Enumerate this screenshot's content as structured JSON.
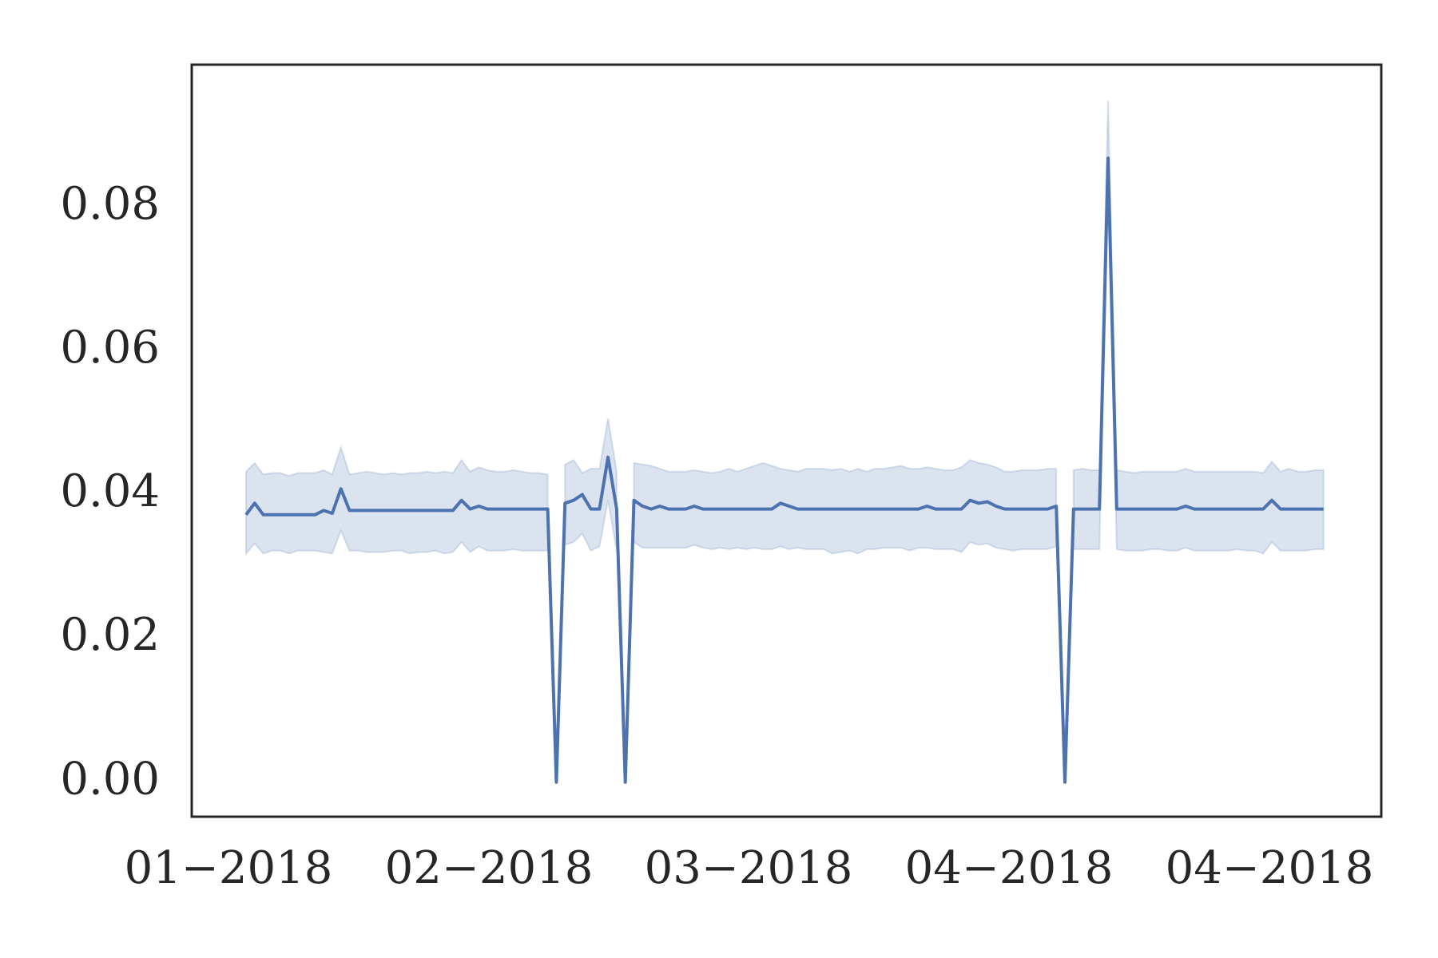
{
  "chart_data": {
    "type": "line",
    "title": "",
    "xlabel": "",
    "ylabel": "",
    "x_tick_labels": [
      "01−2018",
      "02−2018",
      "03−2018",
      "04−2018",
      "04−2018"
    ],
    "y_tick_labels": [
      "0.00",
      "0.02",
      "0.04",
      "0.06",
      "0.08"
    ],
    "y_ticks": [
      0.0,
      0.02,
      0.04,
      0.06,
      0.08
    ],
    "ylim": [
      -0.0048,
      0.0998
    ],
    "xlim": [
      -6.3,
      131.7
    ],
    "grid": false,
    "legend": "none",
    "colors": {
      "line": "#4c72b0",
      "band": "#4c72b0",
      "axes": "#262626"
    },
    "series": [
      {
        "x": [
          0,
          1,
          2,
          3,
          4,
          5,
          6,
          7,
          8,
          9,
          10,
          11,
          12,
          13,
          14,
          15,
          16,
          17,
          18,
          19,
          20,
          21,
          22,
          23,
          24,
          25,
          26,
          27,
          28,
          29,
          30,
          31,
          32,
          33,
          34,
          35,
          36,
          37,
          38,
          39,
          40,
          41,
          42,
          43,
          44,
          45,
          46,
          47,
          48,
          49,
          50,
          51,
          52,
          53,
          54,
          55,
          56,
          57,
          58,
          59,
          60,
          61,
          62,
          63,
          64,
          65,
          66,
          67,
          68,
          69,
          70,
          71,
          72,
          73,
          74,
          75,
          76,
          77,
          78,
          79,
          80,
          81,
          82,
          83,
          84,
          85,
          86,
          87,
          88,
          89,
          90,
          91,
          92,
          93,
          94,
          95,
          96,
          97,
          98,
          99,
          100,
          101,
          102,
          103,
          104,
          105,
          106,
          107,
          108,
          109,
          110,
          111,
          112,
          113,
          114,
          115,
          116,
          117,
          118,
          119,
          120,
          121,
          122,
          123,
          124,
          125
        ],
        "y": [
          0.0372,
          0.0388,
          0.0372,
          0.0372,
          0.0372,
          0.0372,
          0.0372,
          0.0372,
          0.0372,
          0.0378,
          0.0374,
          0.0408,
          0.0378,
          0.0378,
          0.0378,
          0.0378,
          0.0378,
          0.0378,
          0.0378,
          0.0378,
          0.0378,
          0.0378,
          0.0378,
          0.0378,
          0.0378,
          0.0392,
          0.038,
          0.0384,
          0.038,
          0.038,
          0.038,
          0.038,
          0.038,
          0.038,
          0.038,
          0.038,
          0.0,
          0.0388,
          0.0392,
          0.04,
          0.038,
          0.038,
          0.0452,
          0.038,
          0.0,
          0.0392,
          0.0384,
          0.038,
          0.0384,
          0.038,
          0.038,
          0.038,
          0.0384,
          0.038,
          0.038,
          0.038,
          0.038,
          0.038,
          0.038,
          0.038,
          0.038,
          0.038,
          0.0388,
          0.0384,
          0.038,
          0.038,
          0.038,
          0.038,
          0.038,
          0.038,
          0.038,
          0.038,
          0.038,
          0.038,
          0.038,
          0.038,
          0.038,
          0.038,
          0.038,
          0.0384,
          0.038,
          0.038,
          0.038,
          0.038,
          0.0392,
          0.0388,
          0.039,
          0.0384,
          0.038,
          0.038,
          0.038,
          0.038,
          0.038,
          0.038,
          0.0384,
          0.0,
          0.038,
          0.038,
          0.038,
          0.038,
          0.0868,
          0.038,
          0.038,
          0.038,
          0.038,
          0.038,
          0.038,
          0.038,
          0.038,
          0.0384,
          0.038,
          0.038,
          0.038,
          0.038,
          0.038,
          0.038,
          0.038,
          0.038,
          0.038,
          0.0392,
          0.038,
          0.038,
          0.038,
          0.038,
          0.038,
          0.038
        ],
        "lower": [
          0.0318,
          0.0332,
          0.0318,
          0.0322,
          0.0322,
          0.0318,
          0.0322,
          0.0322,
          0.0322,
          0.032,
          0.0318,
          0.035,
          0.0322,
          0.0322,
          0.032,
          0.032,
          0.032,
          0.0322,
          0.0322,
          0.0318,
          0.032,
          0.032,
          0.0322,
          0.0318,
          0.032,
          0.0334,
          0.032,
          0.0328,
          0.0322,
          0.0322,
          0.0322,
          0.0324,
          0.0322,
          0.0322,
          0.0322,
          0.0322,
          null,
          0.033,
          0.0334,
          0.0346,
          0.0322,
          0.0328,
          0.0392,
          0.0322,
          null,
          0.0334,
          0.0326,
          0.0326,
          0.0326,
          0.0326,
          0.0326,
          0.0326,
          0.033,
          0.0326,
          0.0324,
          0.0326,
          0.0324,
          0.0326,
          0.0324,
          0.0326,
          0.0324,
          0.0324,
          0.0328,
          0.0324,
          0.0326,
          0.0324,
          0.0324,
          0.0324,
          0.0318,
          0.032,
          0.0322,
          0.0318,
          0.0324,
          0.0324,
          0.0326,
          0.0326,
          0.0326,
          0.0322,
          0.0326,
          0.0326,
          0.0324,
          0.0324,
          0.0324,
          0.032,
          0.0334,
          0.033,
          0.0332,
          0.0326,
          0.0324,
          0.0322,
          0.0324,
          0.0324,
          0.0324,
          0.0324,
          0.0328,
          null,
          0.0324,
          0.0324,
          0.0324,
          0.0324,
          0.0902,
          0.0324,
          0.0322,
          0.0322,
          0.0322,
          0.0324,
          0.0324,
          0.0322,
          0.0322,
          0.0326,
          0.0322,
          0.0322,
          0.0322,
          0.0322,
          0.0322,
          0.0324,
          0.0322,
          0.0322,
          0.0318,
          0.0334,
          0.0322,
          0.0322,
          0.0322,
          0.0322,
          0.0324,
          0.0324
        ],
        "upper": [
          0.0432,
          0.0444,
          0.0428,
          0.043,
          0.043,
          0.0426,
          0.043,
          0.043,
          0.043,
          0.0434,
          0.0428,
          0.0466,
          0.0428,
          0.043,
          0.0432,
          0.043,
          0.0428,
          0.043,
          0.0428,
          0.043,
          0.043,
          0.0432,
          0.043,
          0.0432,
          0.043,
          0.0448,
          0.0432,
          0.0438,
          0.0434,
          0.0432,
          0.0432,
          0.0434,
          0.0432,
          0.043,
          0.043,
          0.0428,
          null,
          0.0442,
          0.0448,
          0.043,
          0.0436,
          0.0436,
          0.0506,
          0.0432,
          null,
          0.0444,
          0.0442,
          0.044,
          0.0436,
          0.0432,
          0.0432,
          0.0432,
          0.0434,
          0.0432,
          0.043,
          0.0432,
          0.0436,
          0.0432,
          0.0436,
          0.044,
          0.0444,
          0.044,
          0.0436,
          0.0434,
          0.0432,
          0.0436,
          0.0436,
          0.0436,
          0.0434,
          0.0436,
          0.0432,
          0.0436,
          0.0432,
          0.0436,
          0.0436,
          0.0438,
          0.044,
          0.0436,
          0.0436,
          0.0438,
          0.0436,
          0.0434,
          0.0434,
          0.0438,
          0.0448,
          0.0444,
          0.0442,
          0.0438,
          0.0432,
          0.0432,
          0.0434,
          0.0434,
          0.0434,
          0.0436,
          0.0436,
          null,
          0.0434,
          0.0436,
          0.0434,
          0.0434,
          0.0948,
          0.0434,
          0.0432,
          0.043,
          0.0432,
          0.0432,
          0.0432,
          0.0432,
          0.0432,
          0.0436,
          0.0432,
          0.0432,
          0.0432,
          0.0432,
          0.0432,
          0.0432,
          0.0432,
          0.0432,
          0.043,
          0.0446,
          0.0432,
          0.0436,
          0.0432,
          0.0432,
          0.0434,
          0.0434
        ]
      }
    ]
  }
}
